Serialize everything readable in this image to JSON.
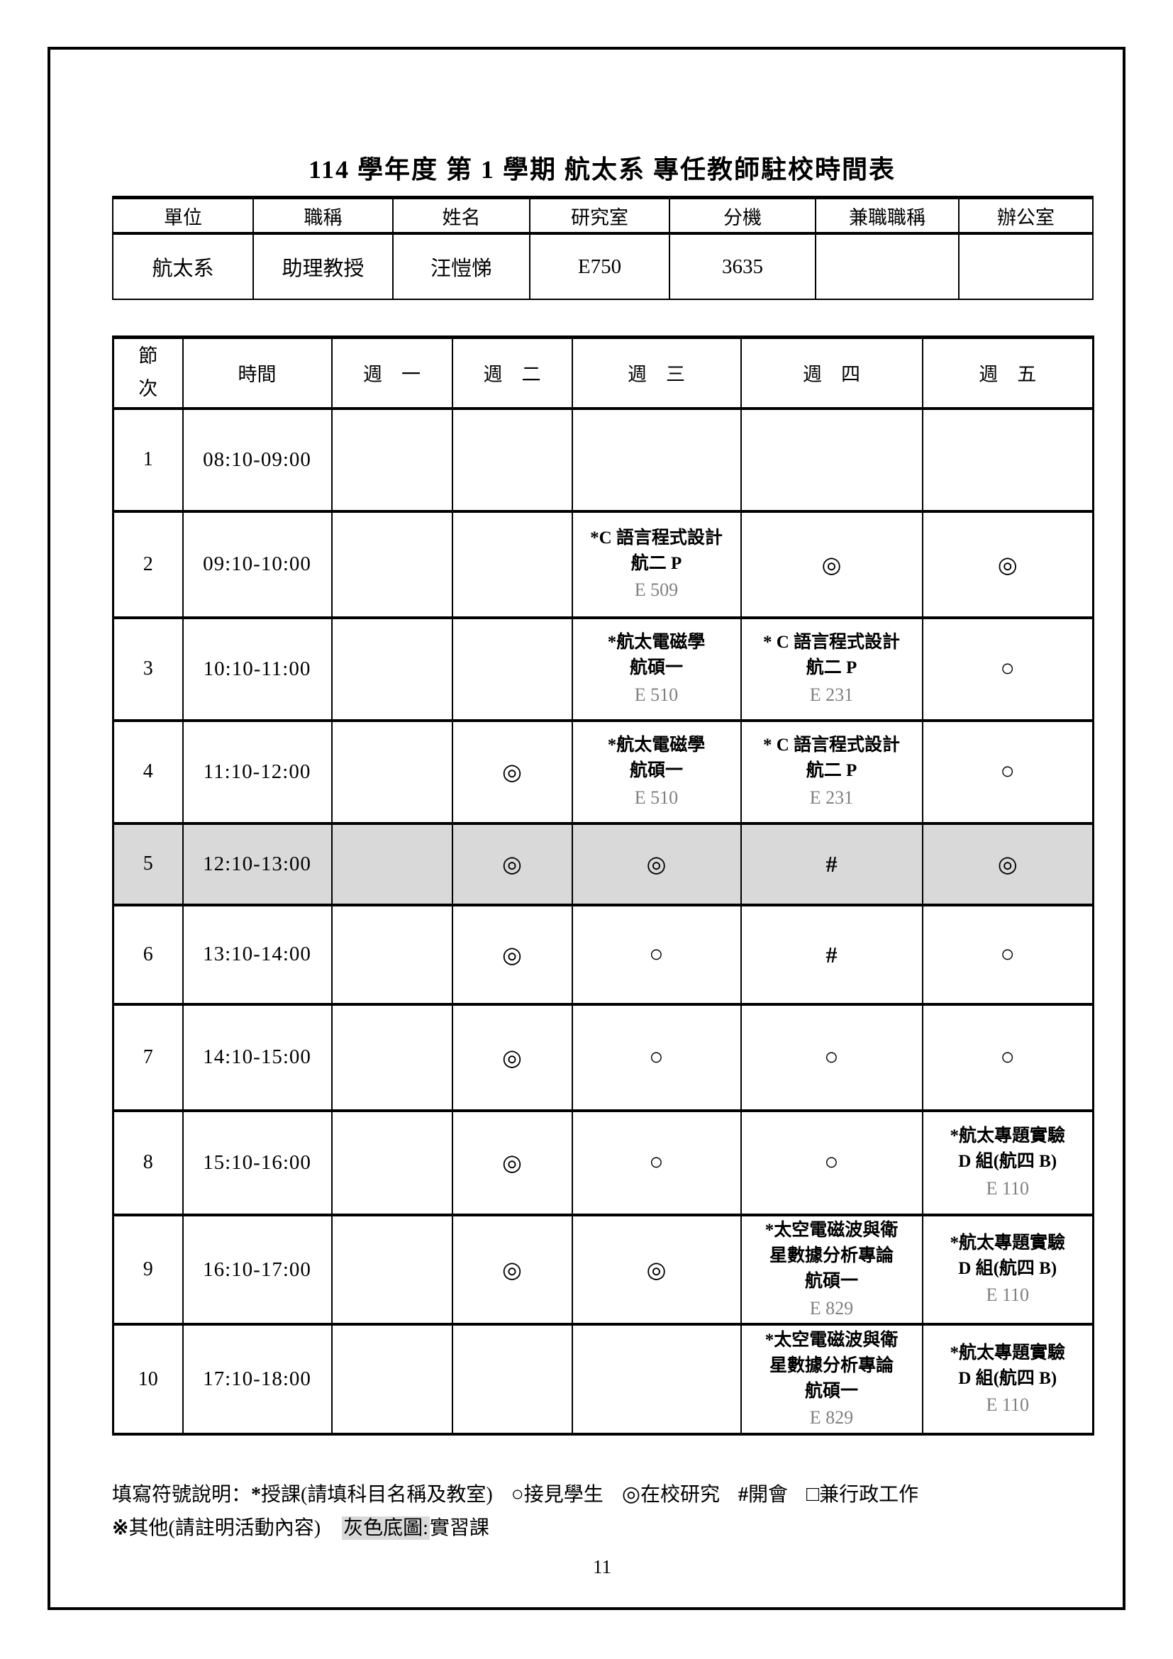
{
  "page": {
    "title": "114 學年度 第 1 學期 航太系 專任教師駐校時間表",
    "page_number": "11"
  },
  "colors": {
    "highlight_gray": "#d9d9d9",
    "room_gray": "#7f7f7f",
    "border_black": "#000000"
  },
  "info_table": {
    "headers": [
      "單位",
      "職稱",
      "姓名",
      "研究室",
      "分機",
      "兼職職稱",
      "辦公室"
    ],
    "values": [
      "航太系",
      "助理教授",
      "汪愷悌",
      "E750",
      "3635",
      "",
      ""
    ]
  },
  "schedule": {
    "period_header": "節次",
    "time_header": "時間",
    "day_headers": [
      "週　一",
      "週　二",
      "週　三",
      "週　四",
      "週　五"
    ],
    "rows": [
      {
        "period": "1",
        "time": "08:10-09:00",
        "highlight": false,
        "cells": [
          {
            "type": "empty"
          },
          {
            "type": "empty"
          },
          {
            "type": "empty"
          },
          {
            "type": "empty"
          },
          {
            "type": "empty"
          }
        ]
      },
      {
        "period": "2",
        "time": "09:10-10:00",
        "highlight": false,
        "cells": [
          {
            "type": "empty"
          },
          {
            "type": "empty"
          },
          {
            "type": "course",
            "lines": [
              "*C 語言程式設計",
              "航二 P"
            ],
            "room": "E 509"
          },
          {
            "type": "symbol",
            "symbol": "◎",
            "name": "research-symbol"
          },
          {
            "type": "symbol",
            "symbol": "◎",
            "name": "research-symbol"
          }
        ]
      },
      {
        "period": "3",
        "time": "10:10-11:00",
        "highlight": false,
        "cells": [
          {
            "type": "empty"
          },
          {
            "type": "empty"
          },
          {
            "type": "course",
            "lines": [
              "*航太電磁學",
              "航碩一"
            ],
            "room": "E 510"
          },
          {
            "type": "course",
            "lines": [
              "* C 語言程式設計",
              "航二 P"
            ],
            "room": "E 231"
          },
          {
            "type": "symbol",
            "symbol": "○",
            "name": "meet-students-symbol"
          }
        ]
      },
      {
        "period": "4",
        "time": "11:10-12:00",
        "highlight": false,
        "cells": [
          {
            "type": "empty"
          },
          {
            "type": "symbol",
            "symbol": "◎",
            "name": "research-symbol"
          },
          {
            "type": "course",
            "lines": [
              "*航太電磁學",
              "航碩一"
            ],
            "room": "E 510"
          },
          {
            "type": "course",
            "lines": [
              "* C 語言程式設計",
              "航二 P"
            ],
            "room": "E 231"
          },
          {
            "type": "symbol",
            "symbol": "○",
            "name": "meet-students-symbol"
          }
        ]
      },
      {
        "period": "5",
        "time": "12:10-13:00",
        "highlight": true,
        "cells": [
          {
            "type": "empty"
          },
          {
            "type": "symbol",
            "symbol": "◎",
            "name": "research-symbol"
          },
          {
            "type": "symbol",
            "symbol": "◎",
            "name": "research-symbol"
          },
          {
            "type": "symbol",
            "symbol": "#",
            "name": "meeting-symbol"
          },
          {
            "type": "symbol",
            "symbol": "◎",
            "name": "research-symbol"
          }
        ]
      },
      {
        "period": "6",
        "time": "13:10-14:00",
        "highlight": false,
        "cells": [
          {
            "type": "empty"
          },
          {
            "type": "symbol",
            "symbol": "◎",
            "name": "research-symbol"
          },
          {
            "type": "symbol",
            "symbol": "○",
            "name": "meet-students-symbol"
          },
          {
            "type": "symbol",
            "symbol": "#",
            "name": "meeting-symbol"
          },
          {
            "type": "symbol",
            "symbol": "○",
            "name": "meet-students-symbol"
          }
        ]
      },
      {
        "period": "7",
        "time": "14:10-15:00",
        "highlight": false,
        "cells": [
          {
            "type": "empty"
          },
          {
            "type": "symbol",
            "symbol": "◎",
            "name": "research-symbol"
          },
          {
            "type": "symbol",
            "symbol": "○",
            "name": "meet-students-symbol"
          },
          {
            "type": "symbol",
            "symbol": "○",
            "name": "meet-students-symbol"
          },
          {
            "type": "symbol",
            "symbol": "○",
            "name": "meet-students-symbol"
          }
        ]
      },
      {
        "period": "8",
        "time": "15:10-16:00",
        "highlight": false,
        "cells": [
          {
            "type": "empty"
          },
          {
            "type": "symbol",
            "symbol": "◎",
            "name": "research-symbol"
          },
          {
            "type": "symbol",
            "symbol": "○",
            "name": "meet-students-symbol"
          },
          {
            "type": "symbol",
            "symbol": "○",
            "name": "meet-students-symbol"
          },
          {
            "type": "course",
            "lines": [
              "*航太專題實驗",
              "D 組(航四 B)"
            ],
            "room": "E 110"
          }
        ]
      },
      {
        "period": "9",
        "time": "16:10-17:00",
        "highlight": false,
        "cells": [
          {
            "type": "empty"
          },
          {
            "type": "symbol",
            "symbol": "◎",
            "name": "research-symbol"
          },
          {
            "type": "symbol",
            "symbol": "◎",
            "name": "research-symbol"
          },
          {
            "type": "course",
            "lines": [
              "*太空電磁波與衛",
              "星數據分析專論",
              "航碩一"
            ],
            "room": "E 829"
          },
          {
            "type": "course",
            "lines": [
              "*航太專題實驗",
              "D 組(航四 B)"
            ],
            "room": "E 110"
          }
        ]
      },
      {
        "period": "10",
        "time": "17:10-18:00",
        "highlight": false,
        "cells": [
          {
            "type": "empty"
          },
          {
            "type": "empty"
          },
          {
            "type": "empty"
          },
          {
            "type": "course",
            "lines": [
              "*太空電磁波與衛",
              "星數據分析專論",
              "航碩一"
            ],
            "room": "E 829"
          },
          {
            "type": "course",
            "lines": [
              "*航太專題實驗",
              "D 組(航四 B)"
            ],
            "room": "E 110"
          }
        ]
      }
    ]
  },
  "legend": {
    "prefix": "填寫符號說明：",
    "items": [
      {
        "symbol": "*",
        "label": "授課(請填科目名稱及教室)"
      },
      {
        "symbol": "○",
        "label": "接見學生"
      },
      {
        "symbol": "◎",
        "label": "在校研究"
      },
      {
        "symbol": "#",
        "label": "開會"
      },
      {
        "symbol": "□",
        "label": "兼行政工作"
      }
    ],
    "other_symbol": "※",
    "other_label": "其他(請註明活動內容)",
    "gray_label": "灰色底圖:",
    "gray_value": "實習課"
  }
}
